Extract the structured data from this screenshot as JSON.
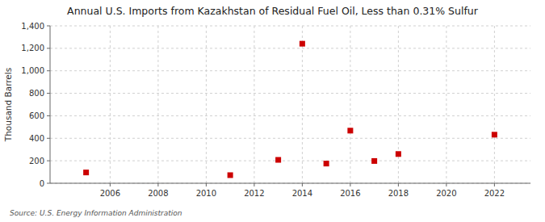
{
  "chart_data": {
    "type": "scatter",
    "title": "Annual U.S. Imports from Kazakhstan of Residual Fuel Oil, Less than 0.31% Sulfur",
    "y_label": "Thousand Barrels",
    "source": "Source: U.S. Energy Information Administration",
    "x": [
      2005,
      2011,
      2013,
      2014,
      2015,
      2016,
      2017,
      2018,
      2022
    ],
    "values": [
      96,
      72,
      208,
      1241,
      175,
      468,
      198,
      260,
      432
    ],
    "color": "#cc0000",
    "marker": "square",
    "xlim": [
      2003.5,
      2023.5
    ],
    "ylim": [
      0,
      1400
    ],
    "xticks": [
      2006,
      2008,
      2010,
      2012,
      2014,
      2016,
      2018,
      2020,
      2022
    ],
    "yticks": [
      0,
      200,
      400,
      600,
      800,
      {
        "value": 1000,
        "label": "1,000"
      },
      {
        "value": 1200,
        "label": "1,200"
      },
      {
        "value": 1400,
        "label": "1,400"
      }
    ],
    "grid": true
  }
}
